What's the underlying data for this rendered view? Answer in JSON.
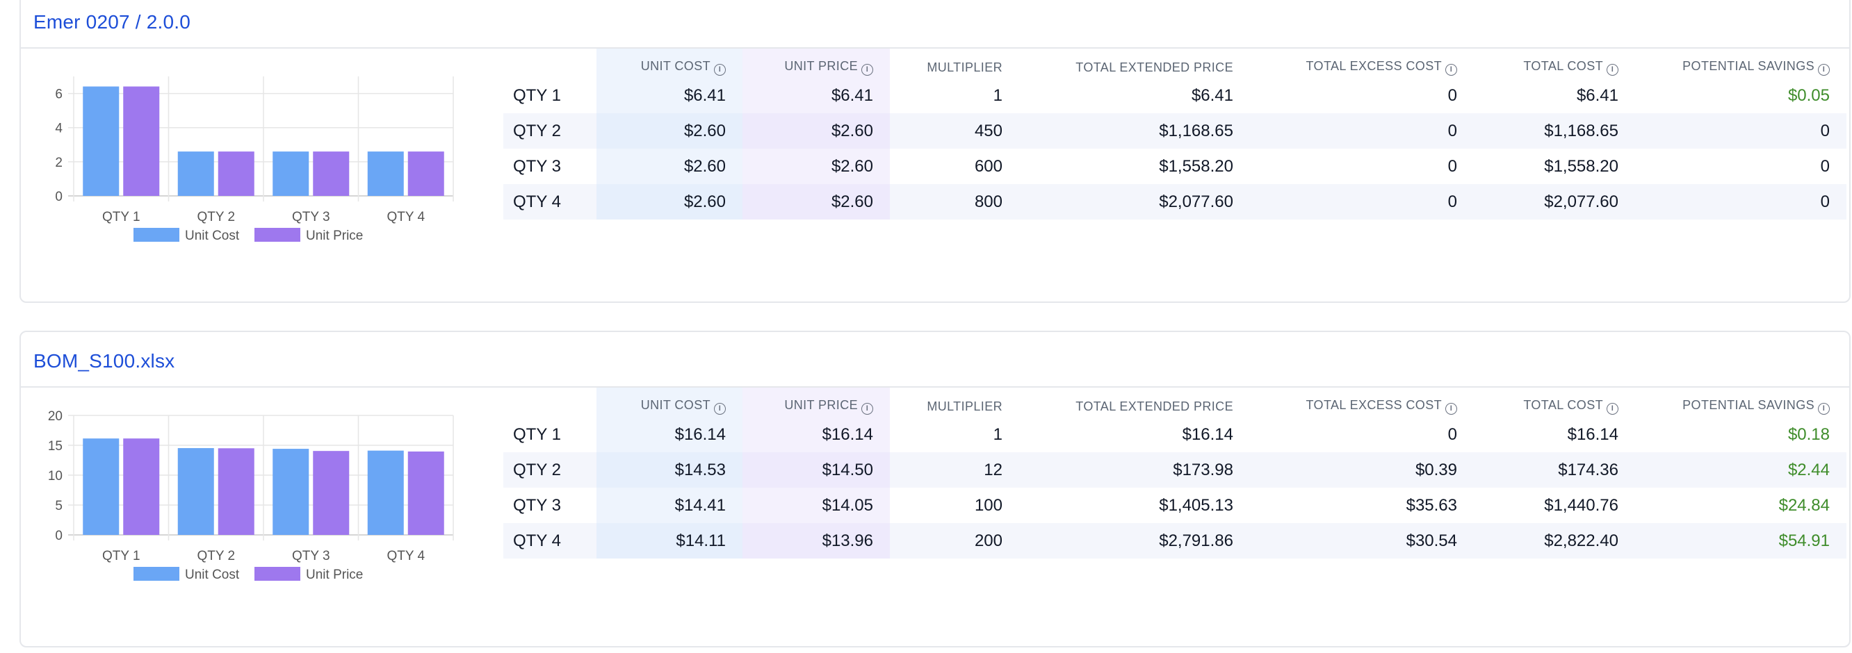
{
  "columns": {
    "row_label": "",
    "unit_cost": "UNIT COST",
    "unit_price": "UNIT PRICE",
    "multiplier": "MULTIPLIER",
    "total_extended_price": "TOTAL EXTENDED PRICE",
    "total_excess_cost": "TOTAL EXCESS COST",
    "total_cost": "TOTAL COST",
    "potential_savings": "POTENTIAL SAVINGS"
  },
  "info_glyph": "i",
  "colors": {
    "unit_cost": "#6aa6f5",
    "unit_price": "#9e78ee",
    "savings_green": "#3f8d2b",
    "title_blue": "#1d4ed8"
  },
  "cards": [
    {
      "title": "Emer 0207 / 2.0.0",
      "rows": [
        {
          "label": "QTY 1",
          "unit_cost": "$6.41",
          "unit_price": "$6.41",
          "multiplier": "1",
          "total_extended_price": "$6.41",
          "total_excess_cost": "0",
          "total_cost": "$6.41",
          "potential_savings": "$0.05"
        },
        {
          "label": "QTY 2",
          "unit_cost": "$2.60",
          "unit_price": "$2.60",
          "multiplier": "450",
          "total_extended_price": "$1,168.65",
          "total_excess_cost": "0",
          "total_cost": "$1,168.65",
          "potential_savings": "0"
        },
        {
          "label": "QTY 3",
          "unit_cost": "$2.60",
          "unit_price": "$2.60",
          "multiplier": "600",
          "total_extended_price": "$1,558.20",
          "total_excess_cost": "0",
          "total_cost": "$1,558.20",
          "potential_savings": "0"
        },
        {
          "label": "QTY 4",
          "unit_cost": "$2.60",
          "unit_price": "$2.60",
          "multiplier": "800",
          "total_extended_price": "$2,077.60",
          "total_excess_cost": "0",
          "total_cost": "$2,077.60",
          "potential_savings": "0"
        }
      ],
      "chart_data": {
        "type": "bar",
        "categories": [
          "QTY 1",
          "QTY 2",
          "QTY 3",
          "QTY 4"
        ],
        "series": [
          {
            "name": "Unit Cost",
            "values": [
              6.41,
              2.6,
              2.6,
              2.6
            ]
          },
          {
            "name": "Unit Price",
            "values": [
              6.41,
              2.6,
              2.6,
              2.6
            ]
          }
        ],
        "ylim": [
          0,
          7
        ],
        "yticks": [
          0,
          2,
          4,
          6
        ],
        "legend": "bottom",
        "grid": true
      }
    },
    {
      "title": "BOM_S100.xlsx",
      "rows": [
        {
          "label": "QTY 1",
          "unit_cost": "$16.14",
          "unit_price": "$16.14",
          "multiplier": "1",
          "total_extended_price": "$16.14",
          "total_excess_cost": "0",
          "total_cost": "$16.14",
          "potential_savings": "$0.18"
        },
        {
          "label": "QTY 2",
          "unit_cost": "$14.53",
          "unit_price": "$14.50",
          "multiplier": "12",
          "total_extended_price": "$173.98",
          "total_excess_cost": "$0.39",
          "total_cost": "$174.36",
          "potential_savings": "$2.44"
        },
        {
          "label": "QTY 3",
          "unit_cost": "$14.41",
          "unit_price": "$14.05",
          "multiplier": "100",
          "total_extended_price": "$1,405.13",
          "total_excess_cost": "$35.63",
          "total_cost": "$1,440.76",
          "potential_savings": "$24.84"
        },
        {
          "label": "QTY 4",
          "unit_cost": "$14.11",
          "unit_price": "$13.96",
          "multiplier": "200",
          "total_extended_price": "$2,791.86",
          "total_excess_cost": "$30.54",
          "total_cost": "$2,822.40",
          "potential_savings": "$54.91"
        }
      ],
      "chart_data": {
        "type": "bar",
        "categories": [
          "QTY 1",
          "QTY 2",
          "QTY 3",
          "QTY 4"
        ],
        "series": [
          {
            "name": "Unit Cost",
            "values": [
              16.14,
              14.53,
              14.41,
              14.11
            ]
          },
          {
            "name": "Unit Price",
            "values": [
              16.14,
              14.5,
              14.05,
              13.96
            ]
          }
        ],
        "ylim": [
          0,
          20
        ],
        "yticks": [
          0,
          5,
          10,
          15,
          20
        ],
        "legend": "bottom",
        "grid": true
      }
    }
  ]
}
